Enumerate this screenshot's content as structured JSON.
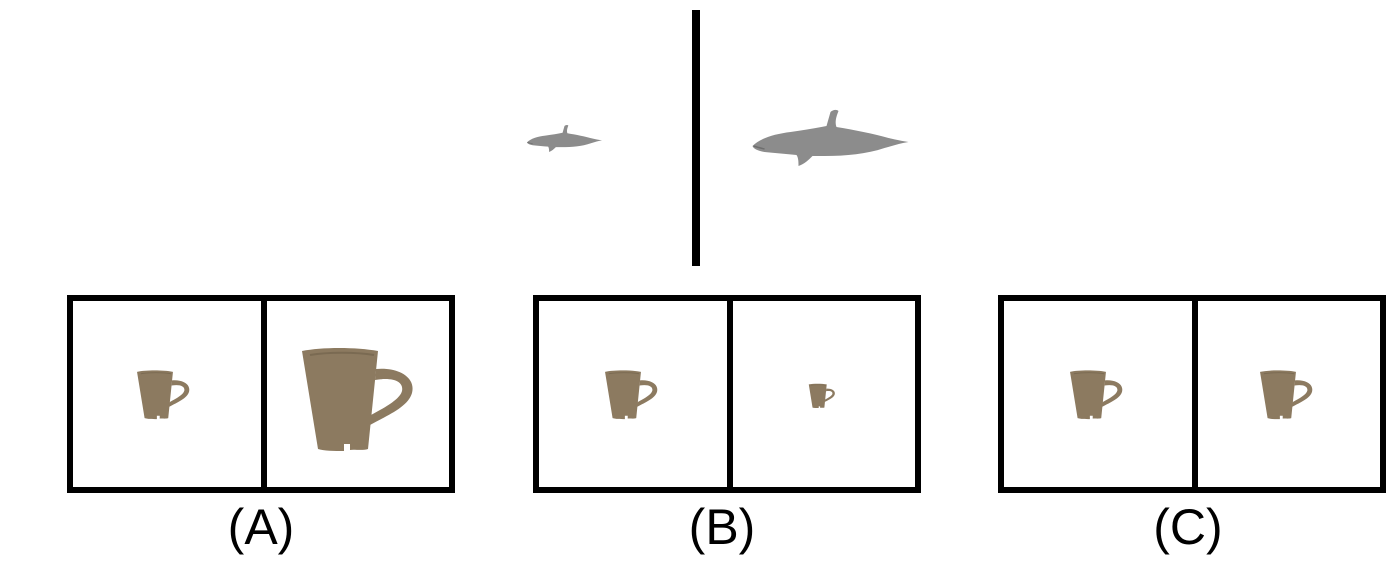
{
  "reference": {
    "left_object": "dolphin-icon",
    "right_object": "dolphin-icon",
    "left_size": "small",
    "right_size": "large",
    "color": "#8c8c8c"
  },
  "options": [
    {
      "label": "(A)",
      "left_object": "mug-icon",
      "right_object": "mug-icon",
      "left_size": "small",
      "right_size": "large"
    },
    {
      "label": "(B)",
      "left_object": "mug-icon",
      "right_object": "mug-icon",
      "left_size": "small",
      "right_size": "smaller"
    },
    {
      "label": "(C)",
      "left_object": "mug-icon",
      "right_object": "mug-icon",
      "left_size": "small",
      "right_size": "small"
    }
  ],
  "colors": {
    "mug": "#8c7a60",
    "dolphin": "#8c8c8c",
    "frame": "#000000"
  }
}
